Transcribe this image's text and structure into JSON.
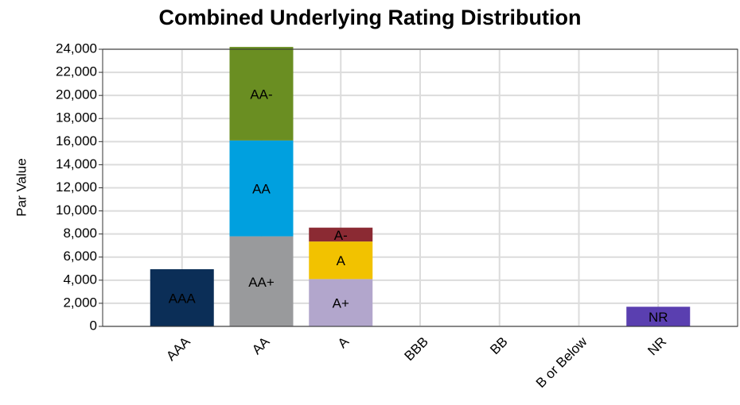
{
  "chart_data": {
    "type": "stacked_bar",
    "title": "Combined Underlying Rating Distribution",
    "y_label": "Par Value",
    "categories": [
      "AAA",
      "AA",
      "A",
      "BBB",
      "BB",
      "B or Below",
      "NR"
    ],
    "series": [
      {
        "name": "AAA",
        "color": "#0b2e57",
        "values": [
          4950,
          null,
          null,
          null,
          null,
          null,
          null
        ]
      },
      {
        "name": "AA+",
        "color": "#999a9c",
        "values": [
          null,
          7800,
          null,
          null,
          null,
          null,
          null
        ]
      },
      {
        "name": "AA",
        "color": "#00a0df",
        "values": [
          null,
          8300,
          null,
          null,
          null,
          null,
          null
        ]
      },
      {
        "name": "AA-",
        "color": "#6a8e22",
        "values": [
          null,
          8100,
          null,
          null,
          null,
          null,
          null
        ]
      },
      {
        "name": "A+",
        "color": "#b2a6cc",
        "values": [
          null,
          null,
          4100,
          null,
          null,
          null,
          null
        ]
      },
      {
        "name": "A",
        "color": "#f2c200",
        "values": [
          null,
          null,
          3250,
          null,
          null,
          null,
          null
        ]
      },
      {
        "name": "A-",
        "color": "#8b2a33",
        "values": [
          null,
          null,
          1200,
          null,
          null,
          null,
          null
        ]
      },
      {
        "name": "NR",
        "color": "#5a3fb0",
        "values": [
          null,
          null,
          null,
          null,
          null,
          null,
          1700
        ]
      }
    ],
    "ylim": [
      0,
      24000
    ],
    "yticks": [
      0,
      {
        "value": 2000,
        "label": "2,000"
      },
      {
        "value": 4000,
        "label": "4,000"
      },
      {
        "value": 6000,
        "label": "6,000"
      },
      {
        "value": 8000,
        "label": "8,000"
      },
      {
        "value": 10000,
        "label": "10,000"
      },
      {
        "value": 12000,
        "label": "12,000"
      },
      {
        "value": 14000,
        "label": "14,000"
      },
      {
        "value": 16000,
        "label": "16,000"
      },
      {
        "value": 18000,
        "label": "18,000"
      },
      {
        "value": 20000,
        "label": "20,000"
      },
      {
        "value": 22000,
        "label": "22,000"
      },
      {
        "value": 24000,
        "label": "24,000"
      }
    ],
    "grid": true
  }
}
